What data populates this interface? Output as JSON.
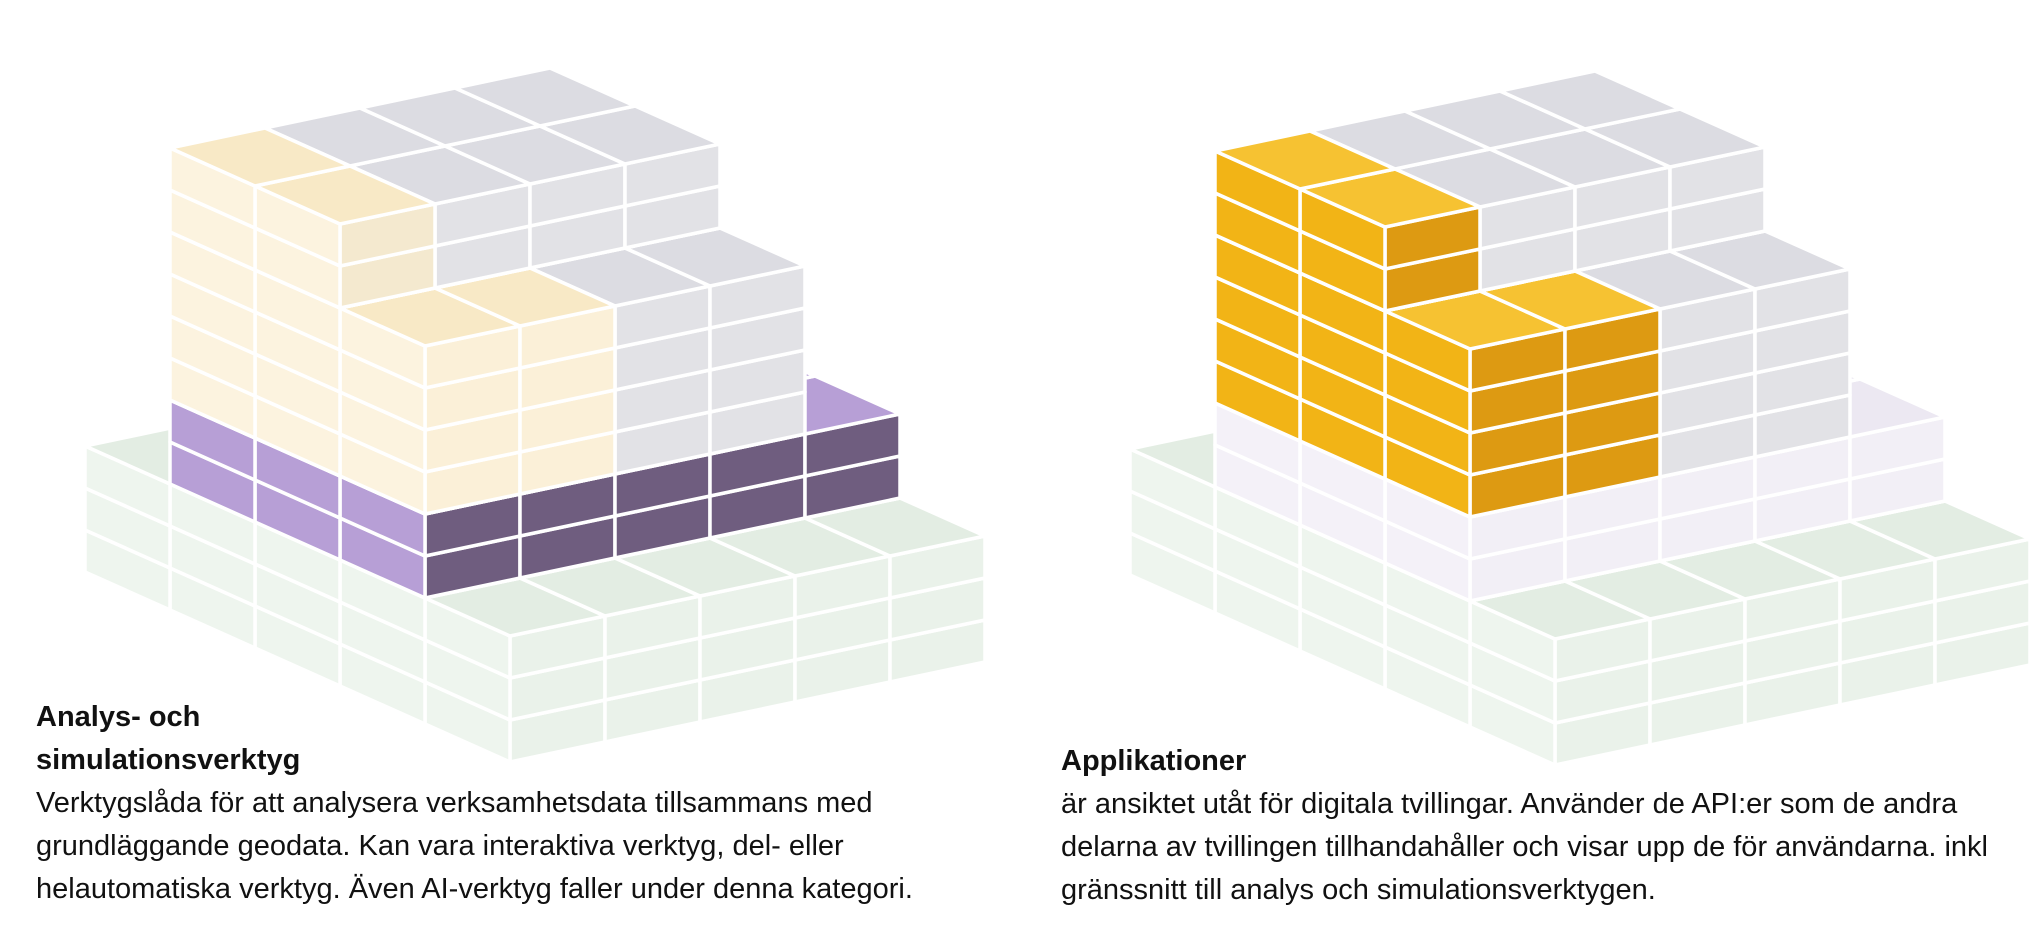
{
  "panels": [
    {
      "title_lines": [
        "Analys- och",
        "simulationsverktyg"
      ],
      "description": "Verktygslåda för att analysera verksamhetsdata tillsammans med grundläggande geodata. Kan vara interaktiva verktyg, del- eller helautomatiska verktyg. Även AI-verktyg faller under denna kategori.",
      "highlight_layer": "analysis-tools",
      "highlight_colors": [
        "#b79fd6",
        "#6f5d7f"
      ]
    },
    {
      "title_lines": [
        "Applikationer"
      ],
      "description": "är ansiktet utåt för digitala tvillingar. Använder de API:er som de andra delarna av tvillingen tillhandahåller och visar upp de för användarna. inkl gränssnitt till analys och simulationsverktygen.",
      "highlight_layer": "applications",
      "highlight_colors": [
        "#f2b416",
        "#dd9a12"
      ]
    }
  ]
}
